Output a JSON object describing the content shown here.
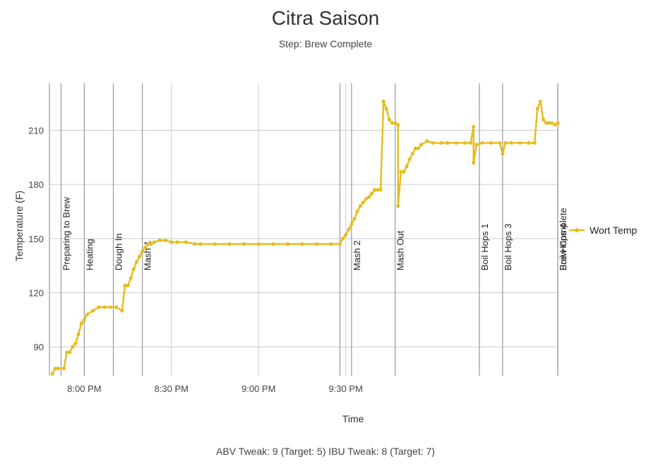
{
  "title": "Citra Saison",
  "subtitle": "Step: Brew Complete",
  "footer": "ABV Tweak: 9 (Target: 5) IBU Tweak: 8 (Target: 7)",
  "chart_data": {
    "type": "line",
    "xlabel": "Time",
    "ylabel": "Temperature (F)",
    "x_ticks": [
      "8:00 PM",
      "8:30 PM",
      "9:00 PM",
      "9:30 PM"
    ],
    "y_ticks": [
      90,
      120,
      150,
      180,
      210
    ],
    "ylim": [
      74,
      236
    ],
    "legend": "right",
    "grid": true,
    "series_color": "#e6bd1d",
    "series": [
      {
        "name": "Wort Temp",
        "points": [
          [
            "19:49",
            75
          ],
          [
            "19:50",
            78
          ],
          [
            "19:51",
            78
          ],
          [
            "19:53",
            78
          ],
          [
            "19:54",
            87
          ],
          [
            "19:55",
            87
          ],
          [
            "19:56",
            90
          ],
          [
            "19:57",
            92
          ],
          [
            "19:58",
            97
          ],
          [
            "19:59",
            103
          ],
          [
            "20:00",
            105
          ],
          [
            "20:01",
            108
          ],
          [
            "20:03",
            110
          ],
          [
            "20:05",
            112
          ],
          [
            "20:07",
            112
          ],
          [
            "20:09",
            112
          ],
          [
            "20:11",
            112
          ],
          [
            "20:13",
            110
          ],
          [
            "20:14",
            124
          ],
          [
            "20:15",
            124
          ],
          [
            "20:16",
            128
          ],
          [
            "20:17",
            133
          ],
          [
            "20:18",
            137
          ],
          [
            "20:19",
            140
          ],
          [
            "20:20",
            143
          ],
          [
            "20:21",
            145
          ],
          [
            "20:22",
            147
          ],
          [
            "20:23",
            147
          ],
          [
            "20:24",
            148
          ],
          [
            "20:26",
            149
          ],
          [
            "20:28",
            149
          ],
          [
            "20:30",
            148
          ],
          [
            "20:32",
            148
          ],
          [
            "20:35",
            148
          ],
          [
            "20:38",
            147
          ],
          [
            "20:40",
            147
          ],
          [
            "20:45",
            147
          ],
          [
            "20:50",
            147
          ],
          [
            "20:55",
            147
          ],
          [
            "21:00",
            147
          ],
          [
            "21:05",
            147
          ],
          [
            "21:10",
            147
          ],
          [
            "21:15",
            147
          ],
          [
            "21:20",
            147
          ],
          [
            "21:25",
            147
          ],
          [
            "21:28",
            147
          ],
          [
            "21:29",
            150
          ],
          [
            "21:30",
            152
          ],
          [
            "21:31",
            155
          ],
          [
            "21:32",
            158
          ],
          [
            "21:33",
            161
          ],
          [
            "21:34",
            165
          ],
          [
            "21:35",
            168
          ],
          [
            "21:36",
            170
          ],
          [
            "21:37",
            172
          ],
          [
            "21:38",
            173
          ],
          [
            "21:39",
            175
          ],
          [
            "21:40",
            177
          ],
          [
            "21:41",
            177
          ],
          [
            "21:42",
            177
          ],
          [
            "21:43",
            226
          ],
          [
            "21:44",
            222
          ],
          [
            "21:45",
            216
          ],
          [
            "21:46",
            214
          ],
          [
            "21:47",
            214
          ],
          [
            "21:48",
            213
          ],
          [
            "21:48",
            168
          ],
          [
            "21:49",
            187
          ],
          [
            "21:50",
            187
          ],
          [
            "21:51",
            190
          ],
          [
            "21:52",
            194
          ],
          [
            "21:53",
            197
          ],
          [
            "21:54",
            200
          ],
          [
            "21:55",
            200
          ],
          [
            "21:56",
            202
          ],
          [
            "21:58",
            204
          ],
          [
            "22:00",
            203
          ],
          [
            "22:03",
            203
          ],
          [
            "22:05",
            203
          ],
          [
            "22:08",
            203
          ],
          [
            "22:11",
            203
          ],
          [
            "22:13",
            203
          ],
          [
            "22:14",
            212
          ],
          [
            "22:14",
            192
          ],
          [
            "22:15",
            202
          ],
          [
            "22:17",
            203
          ],
          [
            "22:20",
            203
          ],
          [
            "22:23",
            203
          ],
          [
            "22:24",
            197
          ],
          [
            "22:25",
            203
          ],
          [
            "22:27",
            203
          ],
          [
            "22:30",
            203
          ],
          [
            "22:33",
            203
          ],
          [
            "22:35",
            203
          ],
          [
            "22:36",
            222
          ],
          [
            "22:37",
            226
          ],
          [
            "22:38",
            216
          ],
          [
            "22:39",
            214
          ],
          [
            "22:40",
            214
          ],
          [
            "22:41",
            214
          ],
          [
            "22:42",
            213
          ],
          [
            "22:43",
            214
          ]
        ]
      }
    ],
    "annotations": [
      {
        "time": "19:48",
        "label": ""
      },
      {
        "time": "19:52",
        "label": "Preparing to Brew"
      },
      {
        "time": "20:00",
        "label": "Heating"
      },
      {
        "time": "20:10",
        "label": "Dough In"
      },
      {
        "time": "20:20",
        "label": "Mash 1"
      },
      {
        "time": "21:28",
        "label": ""
      },
      {
        "time": "21:32",
        "label": "Mash 2"
      },
      {
        "time": "21:47",
        "label": "Mash Out"
      },
      {
        "time": "22:16",
        "label": "Boil Hops 1"
      },
      {
        "time": "22:24",
        "label": "Boil Hops 3"
      },
      {
        "time": "22:43",
        "label": "Boil Hops 4"
      },
      {
        "time": "22:43",
        "label": "Brew Complete"
      }
    ]
  }
}
